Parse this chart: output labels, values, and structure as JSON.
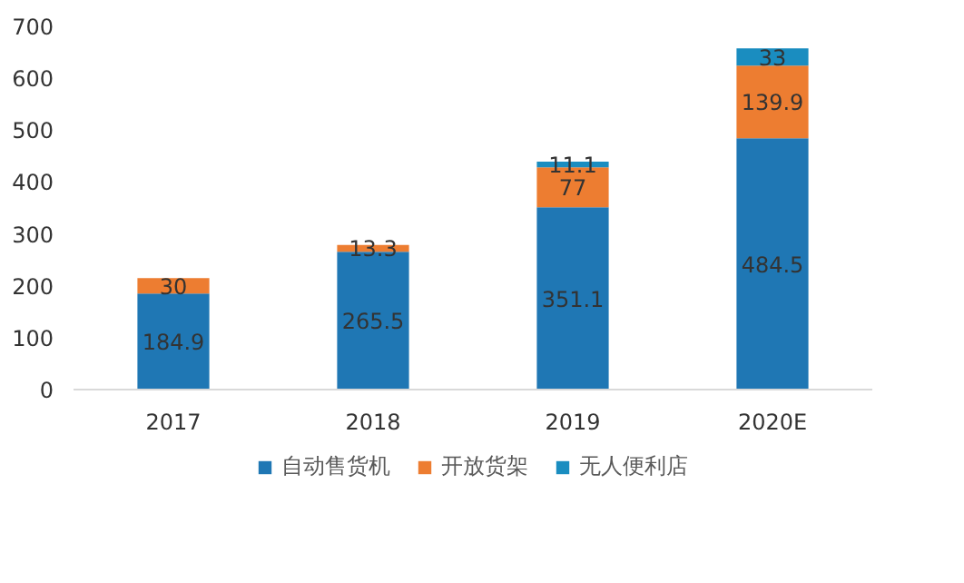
{
  "chart_data": {
    "type": "bar",
    "stacked": true,
    "categories": [
      "2017",
      "2018",
      "2019",
      "2020E"
    ],
    "series": [
      {
        "name": "自动售货机",
        "color": "#1f77b4",
        "values": [
          184.9,
          265.5,
          351.1,
          484.5
        ]
      },
      {
        "name": "开放货架",
        "color": "#ed7d31",
        "values": [
          30,
          13.3,
          77,
          139.9
        ]
      },
      {
        "name": "无人便利店",
        "color": "#1a8dc0",
        "values": [
          null,
          null,
          11.1,
          33
        ]
      }
    ],
    "ylim": [
      0,
      700
    ],
    "yticks": [
      0,
      100,
      200,
      300,
      400,
      500,
      600,
      700
    ],
    "grid": false,
    "legend": "bottom",
    "data_labels": true
  }
}
